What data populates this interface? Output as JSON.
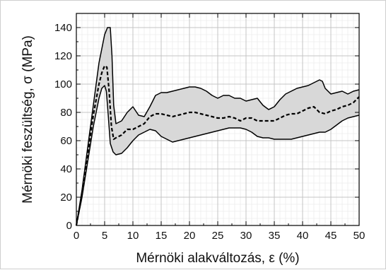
{
  "chart_data": {
    "type": "line",
    "xlabel": "Mérnöki alakváltozás, ε (%)",
    "ylabel": "Mérnöki feszültség, σ (MPa)",
    "xlim": [
      0,
      50
    ],
    "ylim": [
      0,
      150
    ],
    "x_ticks": [
      0,
      5,
      10,
      15,
      20,
      25,
      30,
      35,
      40,
      45,
      50
    ],
    "y_ticks": [
      0,
      20,
      40,
      60,
      80,
      100,
      120,
      140
    ],
    "x_tick_labels": [
      "0",
      "5",
      "10",
      "15",
      "20",
      "25",
      "30",
      "35",
      "40",
      "45",
      "50"
    ],
    "y_tick_labels": [
      "0",
      "20",
      "40",
      "60",
      "80",
      "100",
      "120",
      "140"
    ],
    "grid": {
      "major": true,
      "minor": true
    },
    "band_color": "#d8d8d8",
    "line_color": "#000000",
    "series": [
      {
        "style": "solid",
        "x": [
          0,
          1,
          2,
          3,
          4,
          5,
          5.5,
          6,
          6.3,
          6.6,
          7,
          8,
          9,
          10,
          11,
          12,
          13,
          14,
          15,
          16,
          17,
          18,
          19,
          20,
          21,
          22,
          23,
          24,
          25,
          26,
          27,
          28,
          29,
          30,
          31,
          32,
          33,
          34,
          35,
          36,
          37,
          38,
          39,
          40,
          41,
          42,
          43,
          43.5,
          44,
          45,
          46,
          47,
          48,
          49,
          50
        ],
        "y": [
          0,
          25,
          55,
          85,
          115,
          135,
          140,
          140,
          120,
          85,
          72,
          74,
          80,
          84,
          78,
          77,
          84,
          92,
          94,
          94,
          95,
          96,
          97,
          98,
          98,
          97,
          95,
          92,
          90,
          92,
          92,
          90,
          90,
          88,
          89,
          90,
          85,
          82,
          84,
          89,
          93,
          95,
          97,
          98,
          99,
          101,
          103,
          102,
          97,
          93,
          94,
          95,
          93,
          95,
          96
        ]
      },
      {
        "style": "solid",
        "x": [
          0,
          1,
          2,
          3,
          4,
          4.5,
          5,
          5.3,
          5.6,
          6,
          6.5,
          7,
          8,
          9,
          10,
          11,
          12,
          13,
          14,
          15,
          16,
          17,
          18,
          19,
          20,
          21,
          22,
          23,
          24,
          25,
          26,
          27,
          28,
          29,
          30,
          31,
          32,
          33,
          34,
          35,
          36,
          37,
          38,
          39,
          40,
          41,
          42,
          43,
          44,
          45,
          46,
          47,
          48,
          49,
          50
        ],
        "y": [
          0,
          20,
          45,
          70,
          90,
          97,
          99,
          95,
          80,
          58,
          52,
          50,
          51,
          55,
          60,
          64,
          66,
          68,
          67,
          63,
          61,
          59,
          60,
          61,
          62,
          63,
          64,
          65,
          66,
          67,
          68,
          69,
          69,
          69,
          68,
          66,
          63,
          62,
          62,
          61,
          61,
          61,
          61,
          62,
          63,
          64,
          65,
          66,
          66,
          68,
          71,
          74,
          76,
          77,
          78
        ]
      },
      {
        "style": "dashed",
        "x": [
          0,
          1,
          2,
          3,
          4,
          4.5,
          5,
          5.4,
          5.8,
          6.2,
          6.6,
          7,
          8,
          9,
          10,
          11,
          12,
          13,
          14,
          15,
          16,
          17,
          18,
          19,
          20,
          21,
          22,
          23,
          24,
          25,
          26,
          27,
          28,
          29,
          30,
          31,
          32,
          33,
          34,
          35,
          36,
          37,
          38,
          39,
          40,
          41,
          42,
          43,
          44,
          45,
          46,
          47,
          48,
          49,
          50
        ],
        "y": [
          0,
          22,
          50,
          78,
          100,
          108,
          113,
          112,
          95,
          70,
          61,
          62,
          64,
          68,
          68,
          70,
          72,
          77,
          79,
          79,
          78,
          77,
          78,
          79,
          80,
          80,
          79,
          78,
          77,
          76,
          76,
          77,
          76,
          74,
          76,
          76,
          74,
          74,
          74,
          74,
          76,
          78,
          79,
          79,
          81,
          83,
          84,
          80,
          79,
          81,
          82,
          84,
          85,
          87,
          91
        ]
      }
    ]
  }
}
